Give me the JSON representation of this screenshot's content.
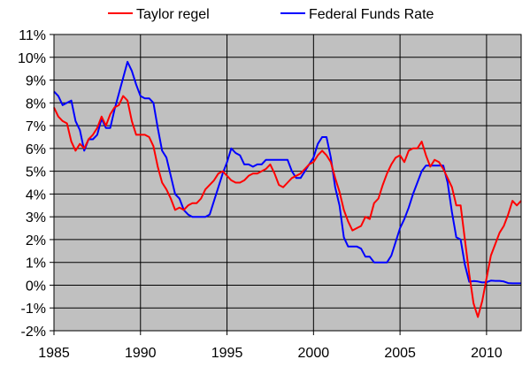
{
  "chart_data": {
    "type": "line",
    "title": "",
    "xlabel": "",
    "ylabel": "",
    "xlim": [
      1985,
      2012
    ],
    "ylim": [
      -2,
      11
    ],
    "grid": true,
    "legend_position": "top",
    "plot_background": "#c0c0c0",
    "x_ticks": [
      {
        "value": 1985,
        "label": "1985"
      },
      {
        "value": 1990,
        "label": "1990"
      },
      {
        "value": 1995,
        "label": "1995"
      },
      {
        "value": 2000,
        "label": "2000"
      },
      {
        "value": 2005,
        "label": "2005"
      },
      {
        "value": 2010,
        "label": "2010"
      }
    ],
    "y_ticks": [
      {
        "value": 11,
        "label": "11%"
      },
      {
        "value": 10,
        "label": "10%"
      },
      {
        "value": 9,
        "label": "9%"
      },
      {
        "value": 8,
        "label": "8%"
      },
      {
        "value": 7,
        "label": "7%"
      },
      {
        "value": 6,
        "label": "6%"
      },
      {
        "value": 5,
        "label": "5%"
      },
      {
        "value": 4,
        "label": "4%"
      },
      {
        "value": 3,
        "label": "3%"
      },
      {
        "value": 2,
        "label": "2%"
      },
      {
        "value": 1,
        "label": "1%"
      },
      {
        "value": 0,
        "label": "0%"
      },
      {
        "value": -1,
        "label": "-1%"
      },
      {
        "value": -2,
        "label": "-2%"
      }
    ],
    "series": [
      {
        "name": "Taylor regel",
        "color": "#ff0000",
        "points": [
          [
            1985.0,
            7.8
          ],
          [
            1985.25,
            7.4
          ],
          [
            1985.5,
            7.2
          ],
          [
            1985.75,
            7.1
          ],
          [
            1986.0,
            6.3
          ],
          [
            1986.25,
            5.9
          ],
          [
            1986.5,
            6.2
          ],
          [
            1986.75,
            6.0
          ],
          [
            1987.0,
            6.4
          ],
          [
            1987.25,
            6.6
          ],
          [
            1987.5,
            6.9
          ],
          [
            1987.75,
            7.4
          ],
          [
            1988.0,
            7.0
          ],
          [
            1988.25,
            7.5
          ],
          [
            1988.5,
            7.8
          ],
          [
            1988.75,
            7.9
          ],
          [
            1989.0,
            8.3
          ],
          [
            1989.25,
            8.1
          ],
          [
            1989.5,
            7.2
          ],
          [
            1989.75,
            6.6
          ],
          [
            1990.0,
            6.6
          ],
          [
            1990.25,
            6.6
          ],
          [
            1990.5,
            6.5
          ],
          [
            1990.75,
            6.1
          ],
          [
            1991.0,
            5.2
          ],
          [
            1991.25,
            4.5
          ],
          [
            1991.5,
            4.2
          ],
          [
            1991.75,
            3.8
          ],
          [
            1992.0,
            3.3
          ],
          [
            1992.25,
            3.4
          ],
          [
            1992.5,
            3.3
          ],
          [
            1992.75,
            3.5
          ],
          [
            1993.0,
            3.6
          ],
          [
            1993.25,
            3.6
          ],
          [
            1993.5,
            3.8
          ],
          [
            1993.75,
            4.2
          ],
          [
            1994.0,
            4.4
          ],
          [
            1994.25,
            4.6
          ],
          [
            1994.5,
            4.9
          ],
          [
            1994.75,
            5.0
          ],
          [
            1995.0,
            4.8
          ],
          [
            1995.25,
            4.6
          ],
          [
            1995.5,
            4.5
          ],
          [
            1995.75,
            4.5
          ],
          [
            1996.0,
            4.6
          ],
          [
            1996.25,
            4.8
          ],
          [
            1996.5,
            4.9
          ],
          [
            1996.75,
            4.9
          ],
          [
            1997.0,
            5.0
          ],
          [
            1997.25,
            5.1
          ],
          [
            1997.5,
            5.3
          ],
          [
            1997.75,
            4.9
          ],
          [
            1998.0,
            4.4
          ],
          [
            1998.25,
            4.3
          ],
          [
            1998.5,
            4.5
          ],
          [
            1998.75,
            4.7
          ],
          [
            1999.0,
            4.8
          ],
          [
            1999.25,
            4.9
          ],
          [
            1999.5,
            5.1
          ],
          [
            1999.75,
            5.3
          ],
          [
            2000.0,
            5.4
          ],
          [
            2000.25,
            5.7
          ],
          [
            2000.5,
            5.9
          ],
          [
            2000.75,
            5.7
          ],
          [
            2001.0,
            5.4
          ],
          [
            2001.25,
            4.7
          ],
          [
            2001.5,
            4.1
          ],
          [
            2001.75,
            3.3
          ],
          [
            2002.0,
            2.8
          ],
          [
            2002.25,
            2.4
          ],
          [
            2002.5,
            2.5
          ],
          [
            2002.75,
            2.6
          ],
          [
            2003.0,
            3.0
          ],
          [
            2003.25,
            2.9
          ],
          [
            2003.5,
            3.6
          ],
          [
            2003.75,
            3.8
          ],
          [
            2004.0,
            4.4
          ],
          [
            2004.25,
            4.9
          ],
          [
            2004.5,
            5.3
          ],
          [
            2004.75,
            5.6
          ],
          [
            2005.0,
            5.7
          ],
          [
            2005.25,
            5.4
          ],
          [
            2005.5,
            5.9
          ],
          [
            2005.75,
            6.0
          ],
          [
            2006.0,
            6.0
          ],
          [
            2006.25,
            6.3
          ],
          [
            2006.5,
            5.7
          ],
          [
            2006.75,
            5.2
          ],
          [
            2007.0,
            5.5
          ],
          [
            2007.25,
            5.4
          ],
          [
            2007.5,
            5.1
          ],
          [
            2007.75,
            4.7
          ],
          [
            2008.0,
            4.3
          ],
          [
            2008.25,
            3.5
          ],
          [
            2008.5,
            3.5
          ],
          [
            2008.75,
            2.0
          ],
          [
            2009.0,
            0.5
          ],
          [
            2009.25,
            -0.8
          ],
          [
            2009.5,
            -1.4
          ],
          [
            2009.75,
            -0.7
          ],
          [
            2010.0,
            0.3
          ],
          [
            2010.25,
            1.3
          ],
          [
            2010.5,
            1.8
          ],
          [
            2010.75,
            2.3
          ],
          [
            2011.0,
            2.6
          ],
          [
            2011.25,
            3.1
          ],
          [
            2011.5,
            3.7
          ],
          [
            2011.75,
            3.5
          ],
          [
            2012.0,
            3.7
          ]
        ]
      },
      {
        "name": "Federal Funds Rate",
        "color": "#0000ff",
        "points": [
          [
            1985.0,
            8.5
          ],
          [
            1985.25,
            8.3
          ],
          [
            1985.5,
            7.9
          ],
          [
            1985.75,
            8.0
          ],
          [
            1986.0,
            8.1
          ],
          [
            1986.25,
            7.2
          ],
          [
            1986.5,
            6.8
          ],
          [
            1986.75,
            5.9
          ],
          [
            1987.0,
            6.4
          ],
          [
            1987.25,
            6.4
          ],
          [
            1987.5,
            6.6
          ],
          [
            1987.75,
            7.3
          ],
          [
            1988.0,
            6.9
          ],
          [
            1988.25,
            6.9
          ],
          [
            1988.5,
            7.7
          ],
          [
            1988.75,
            8.4
          ],
          [
            1989.0,
            9.1
          ],
          [
            1989.25,
            9.8
          ],
          [
            1989.5,
            9.4
          ],
          [
            1989.75,
            8.8
          ],
          [
            1990.0,
            8.3
          ],
          [
            1990.25,
            8.2
          ],
          [
            1990.5,
            8.2
          ],
          [
            1990.75,
            8.0
          ],
          [
            1991.0,
            6.9
          ],
          [
            1991.25,
            5.9
          ],
          [
            1991.5,
            5.6
          ],
          [
            1991.75,
            4.8
          ],
          [
            1992.0,
            4.0
          ],
          [
            1992.25,
            3.8
          ],
          [
            1992.5,
            3.3
          ],
          [
            1992.75,
            3.1
          ],
          [
            1993.0,
            3.0
          ],
          [
            1993.25,
            3.0
          ],
          [
            1993.5,
            3.0
          ],
          [
            1993.75,
            3.0
          ],
          [
            1994.0,
            3.1
          ],
          [
            1994.25,
            3.7
          ],
          [
            1994.5,
            4.3
          ],
          [
            1994.75,
            4.9
          ],
          [
            1995.0,
            5.4
          ],
          [
            1995.25,
            6.0
          ],
          [
            1995.5,
            5.8
          ],
          [
            1995.75,
            5.7
          ],
          [
            1996.0,
            5.3
          ],
          [
            1996.25,
            5.3
          ],
          [
            1996.5,
            5.2
          ],
          [
            1996.75,
            5.3
          ],
          [
            1997.0,
            5.3
          ],
          [
            1997.25,
            5.5
          ],
          [
            1997.5,
            5.5
          ],
          [
            1997.75,
            5.5
          ],
          [
            1998.0,
            5.5
          ],
          [
            1998.25,
            5.5
          ],
          [
            1998.5,
            5.5
          ],
          [
            1998.75,
            5.0
          ],
          [
            1999.0,
            4.7
          ],
          [
            1999.25,
            4.7
          ],
          [
            1999.5,
            5.0
          ],
          [
            1999.75,
            5.3
          ],
          [
            2000.0,
            5.6
          ],
          [
            2000.25,
            6.2
          ],
          [
            2000.5,
            6.5
          ],
          [
            2000.75,
            6.5
          ],
          [
            2001.0,
            5.6
          ],
          [
            2001.25,
            4.3
          ],
          [
            2001.5,
            3.5
          ],
          [
            2001.75,
            2.1
          ],
          [
            2002.0,
            1.7
          ],
          [
            2002.25,
            1.7
          ],
          [
            2002.5,
            1.7
          ],
          [
            2002.75,
            1.6
          ],
          [
            2003.0,
            1.25
          ],
          [
            2003.25,
            1.25
          ],
          [
            2003.5,
            1.0
          ],
          [
            2003.75,
            1.0
          ],
          [
            2004.0,
            1.0
          ],
          [
            2004.25,
            1.0
          ],
          [
            2004.5,
            1.3
          ],
          [
            2004.75,
            1.9
          ],
          [
            2005.0,
            2.5
          ],
          [
            2005.25,
            2.9
          ],
          [
            2005.5,
            3.4
          ],
          [
            2005.75,
            4.0
          ],
          [
            2006.0,
            4.5
          ],
          [
            2006.25,
            5.0
          ],
          [
            2006.5,
            5.25
          ],
          [
            2006.75,
            5.25
          ],
          [
            2007.0,
            5.25
          ],
          [
            2007.25,
            5.25
          ],
          [
            2007.5,
            5.25
          ],
          [
            2007.75,
            4.5
          ],
          [
            2008.0,
            3.2
          ],
          [
            2008.25,
            2.1
          ],
          [
            2008.5,
            2.0
          ],
          [
            2008.75,
            0.9
          ],
          [
            2009.0,
            0.15
          ],
          [
            2009.25,
            0.18
          ],
          [
            2009.5,
            0.16
          ],
          [
            2009.75,
            0.12
          ],
          [
            2010.0,
            0.13
          ],
          [
            2010.25,
            0.2
          ],
          [
            2010.5,
            0.19
          ],
          [
            2010.75,
            0.19
          ],
          [
            2011.0,
            0.16
          ],
          [
            2011.25,
            0.09
          ],
          [
            2011.5,
            0.08
          ],
          [
            2011.75,
            0.08
          ],
          [
            2012.0,
            0.08
          ]
        ]
      }
    ]
  }
}
